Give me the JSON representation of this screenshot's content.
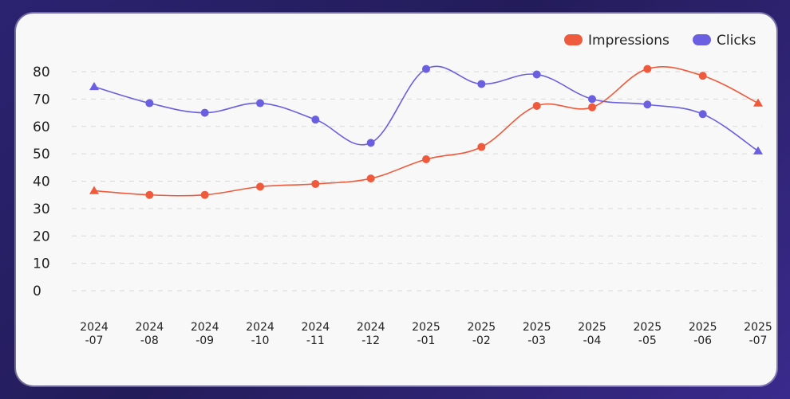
{
  "chart_data": {
    "type": "line",
    "x": [
      "2024-07",
      "2024-08",
      "2024-09",
      "2024-10",
      "2024-11",
      "2024-12",
      "2025-01",
      "2025-02",
      "2025-03",
      "2025-04",
      "2025-05",
      "2025-06",
      "2025-07"
    ],
    "x_tick_labels": [
      [
        "2024",
        "-07"
      ],
      [
        "2024",
        "-08"
      ],
      [
        "2024",
        "-09"
      ],
      [
        "2024",
        "-10"
      ],
      [
        "2024",
        "-11"
      ],
      [
        "2024",
        "-12"
      ],
      [
        "2025",
        "-01"
      ],
      [
        "2025",
        "-02"
      ],
      [
        "2025",
        "-03"
      ],
      [
        "2025",
        "-04"
      ],
      [
        "2025",
        "-05"
      ],
      [
        "2025",
        "-06"
      ],
      [
        "2025",
        "-07"
      ]
    ],
    "series": [
      {
        "name": "Impressions",
        "color": "#ef5a3c",
        "values": [
          36.5,
          35,
          35,
          38,
          39,
          41,
          48,
          52.5,
          67.5,
          67,
          81,
          78.5,
          68.5
        ]
      },
      {
        "name": "Clicks",
        "color": "#6a5fe0",
        "values": [
          74.5,
          68.5,
          65,
          68.5,
          62.5,
          54,
          81,
          75.5,
          79,
          70,
          68,
          64.5,
          51
        ]
      }
    ],
    "y_ticks": [
      0,
      10,
      20,
      30,
      40,
      50,
      60,
      70,
      80
    ],
    "ylim": [
      0,
      80
    ],
    "grid": "horizontal-dashed",
    "legend_position": "top-right",
    "end_markers": "triangle"
  }
}
